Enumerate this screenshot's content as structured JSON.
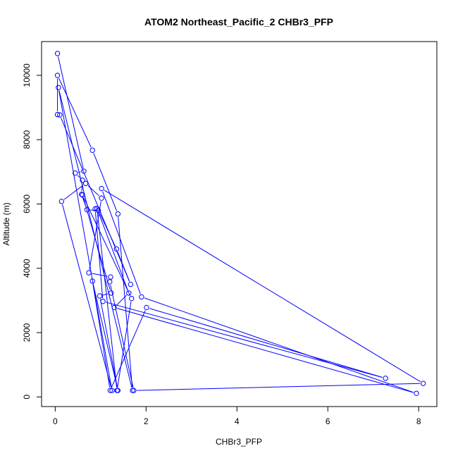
{
  "chart_data": {
    "type": "line",
    "title": "ATOM2 Northeast_Pacific_2 CHBr3_PFP",
    "xlabel": "CHBr3_PFP",
    "ylabel": "Altitude (m)",
    "xlim": [
      -0.3,
      8.4
    ],
    "ylim": [
      -300,
      11050
    ],
    "x_ticks": [
      0,
      2,
      4,
      6,
      8
    ],
    "y_ticks": [
      0,
      2000,
      4000,
      6000,
      8000,
      10000
    ],
    "series_color": "#0000ff",
    "markers": "open-circle",
    "series": [
      {
        "x": [
          0.05,
          0.63,
          0.44,
          0.6,
          0.58,
          0.7,
          0.95,
          1.35,
          1.66,
          0.1,
          0.05,
          0.05,
          0.82,
          1.38,
          1.7,
          0.07,
          1.25,
          0.14,
          0.67,
          1.02,
          0.74,
          1.22,
          1.2,
          1.73,
          8.1,
          1.02,
          1.9,
          7.95,
          1.3,
          1.62,
          0.92,
          1.36,
          1.68,
          0.6,
          1.23,
          0.98,
          1.38,
          0.82,
          1.21,
          2.01,
          7.27,
          1.05,
          0.88
        ],
        "y": [
          10680,
          7020,
          6960,
          6740,
          6300,
          5820,
          5800,
          4600,
          3500,
          8770,
          8780,
          10000,
          7670,
          5690,
          200,
          9620,
          200,
          6080,
          6640,
          6180,
          3860,
          3730,
          3580,
          200,
          420,
          6480,
          3110,
          110,
          2780,
          3230,
          5860,
          200,
          3060,
          6280,
          3230,
          3140,
          200,
          3600,
          200,
          2780,
          580,
          2970,
          5850
        ]
      }
    ]
  }
}
